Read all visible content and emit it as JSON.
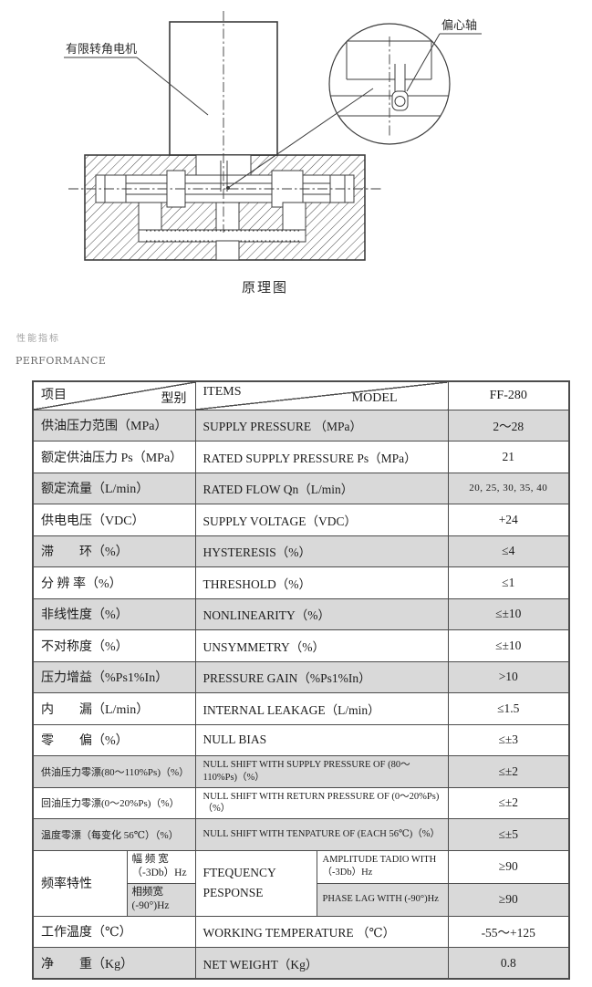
{
  "colors": {
    "row_shaded": "#d9d9d9",
    "border": "#4c4c4c",
    "line": "#3c3c3c",
    "title_cn": "#a3a3a3",
    "title_en": "#6b6b6b"
  },
  "diagram": {
    "caption": "原理图",
    "motor_label": "有限转角电机",
    "eccentric_label": "偏心轴"
  },
  "section": {
    "title_cn": "性能指标",
    "title_en": "PERFORMANCE"
  },
  "table": {
    "header": {
      "col1_left": "项目",
      "col1_right": "型别",
      "col2_left": "ITEMS",
      "col2_right": "MODEL",
      "col3": "FF-280"
    },
    "rows_before_freq": [
      {
        "cn": "供油压力范围（MPa）",
        "en": "SUPPLY PRESSURE （MPa）",
        "val": "2～28",
        "shaded": true,
        "small": false,
        "val_small": false
      },
      {
        "cn": "额定供油压力 Ps（MPa）",
        "en": "RATED SUPPLY PRESSURE Ps（MPa）",
        "val": "21",
        "shaded": false,
        "small": false,
        "val_small": false
      },
      {
        "cn": "额定流量（L/min）",
        "en": "RATED FLOW Qn（L/min）",
        "val": "20, 25, 30, 35, 40",
        "shaded": true,
        "small": false,
        "val_small": true
      },
      {
        "cn": "供电电压（VDC）",
        "en": "SUPPLY VOLTAGE（VDC）",
        "val": "+24",
        "shaded": false,
        "small": false,
        "val_small": false
      },
      {
        "cn": "滞　　环（%）",
        "en": "HYSTERESIS（%）",
        "val": "≤4",
        "shaded": true,
        "small": false,
        "val_small": false
      },
      {
        "cn": "分 辨 率（%）",
        "en": "THRESHOLD（%）",
        "val": "≤1",
        "shaded": false,
        "small": false,
        "val_small": false
      },
      {
        "cn": "非线性度（%）",
        "en": "NONLINEARITY（%）",
        "val": "≤±10",
        "shaded": true,
        "small": false,
        "val_small": false
      },
      {
        "cn": "不对称度（%）",
        "en": "UNSYMMETRY（%）",
        "val": "≤±10",
        "shaded": false,
        "small": false,
        "val_small": false
      },
      {
        "cn": "压力增益（%Ps1%In）",
        "en": "PRESSURE GAIN（%Ps1%In）",
        "val": ">10",
        "shaded": true,
        "small": false,
        "val_small": false
      },
      {
        "cn": "内　　漏（L/min）",
        "en": "INTERNAL LEAKAGE（L/min）",
        "val": "≤1.5",
        "shaded": false,
        "small": false,
        "val_small": false
      },
      {
        "cn": "零　　偏（%）",
        "en": "NULL BIAS",
        "val": "≤±3",
        "shaded": false,
        "small": false,
        "val_small": false
      },
      {
        "cn": "供油压力零漂(80～110%Ps)（%）",
        "en": "NULL SHIFT WITH SUPPLY PRESSURE OF (80～110%Ps)（%）",
        "val": "≤±2",
        "shaded": true,
        "small": true,
        "val_small": false
      },
      {
        "cn": "回油压力零漂(0～20%Ps)（%）",
        "en": "NULL SHIFT WITH RETURN PRESSURE OF (0～20%Ps)（%）",
        "val": "≤±2",
        "shaded": false,
        "small": true,
        "val_small": false
      },
      {
        "cn": "温度零漂（每变化 56℃）（%）",
        "en": "NULL SHIFT WITH TENPATURE OF (EACH 56℃)（%）",
        "val": "≤±5",
        "shaded": true,
        "small": true,
        "val_small": false
      }
    ],
    "freq": {
      "cn_label": "频率特性",
      "en_label_line1": "FTEQUENCY",
      "en_label_line2": "PESPONSE",
      "sub_rows": [
        {
          "cn": "幅 频 宽（-3Db）Hz",
          "en": "AMPLITUDE TADIO WITH（-3Db）Hz",
          "val": "≥90",
          "shaded": false
        },
        {
          "cn": "相频宽(-90°)Hz",
          "en": "PHASE LAG WITH (-90°)Hz",
          "val": "≥90",
          "shaded": true
        }
      ]
    },
    "rows_after_freq": [
      {
        "cn": "工作温度（℃）",
        "en": "WORKING TEMPERATURE （℃）",
        "val": "-55～+125",
        "shaded": false,
        "small": false,
        "val_small": false
      },
      {
        "cn": "净　　重（Kg）",
        "en": "NET WEIGHT（Kg）",
        "val": "0.8",
        "shaded": true,
        "small": false,
        "val_small": false
      }
    ]
  }
}
